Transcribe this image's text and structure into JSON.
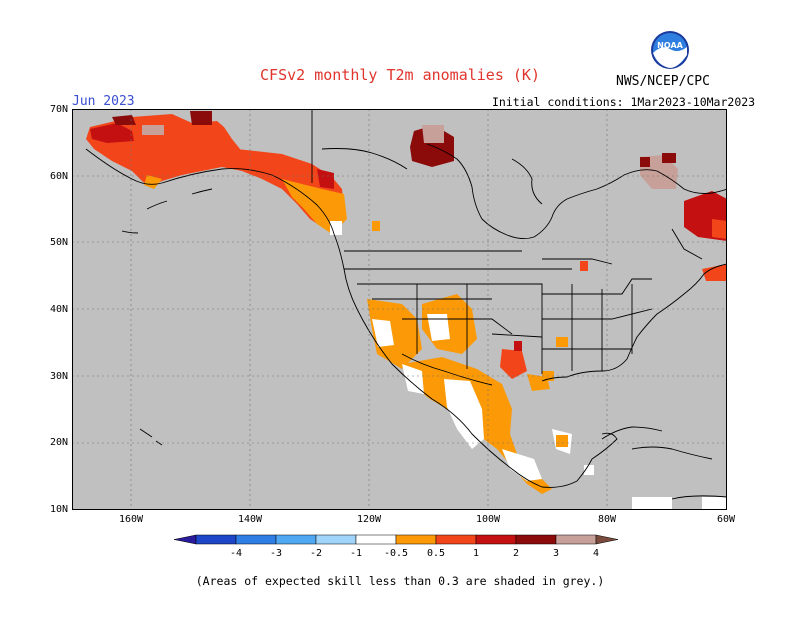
{
  "title": "CFSv2 monthly T2m anomalies (K)",
  "month": "Jun 2023",
  "initial_conditions": "Initial conditions: 1Mar2023-10Mar2023",
  "agency": "NWS/NCEP/CPC",
  "logo_text": "NOAA",
  "footnote": "(Areas of expected skill less than 0.3 are shaded in grey.)",
  "lat_labels": [
    "70N",
    "60N",
    "50N",
    "40N",
    "30N",
    "20N",
    "10N"
  ],
  "lon_labels": [
    "160W",
    "140W",
    "120W",
    "100W",
    "80W",
    "60W"
  ],
  "colorbar": {
    "labels": [
      "-4",
      "-3",
      "-2",
      "-1",
      "-0.5",
      "0.5",
      "1",
      "2",
      "3",
      "4"
    ],
    "colors": [
      "#2a1a9c",
      "#1e46c8",
      "#2f7ee6",
      "#50a8f2",
      "#a0d4fa",
      "#ffffff",
      "#fb9a06",
      "#f2461a",
      "#c41010",
      "#8b0a0a",
      "#c8a09a",
      "#7a4a3c"
    ]
  },
  "map_colors": {
    "background": "#c0c0c0",
    "ocean_grey": "#c0c0c0",
    "anom_0_5_1": "#fb9a06",
    "anom_1_2": "#f2461a",
    "anom_2_3": "#c41010",
    "anom_3_4": "#8b0a0a",
    "anom_gt4": "#c8a09a",
    "no_skill_white": "#ffffff"
  }
}
